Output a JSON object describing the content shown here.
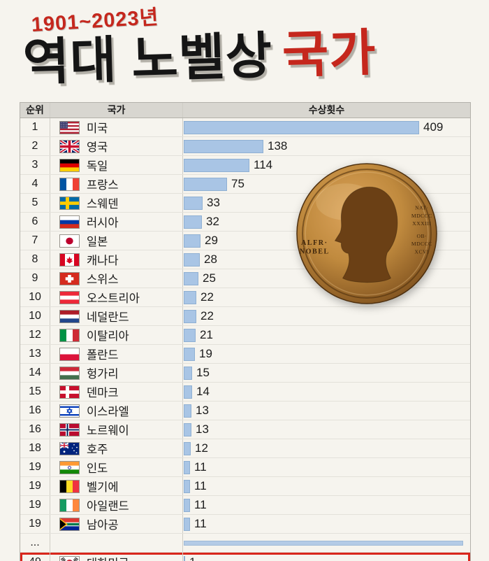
{
  "title": {
    "period": "1901~2023년",
    "main": "역대 노벨상",
    "accent": "국가"
  },
  "table": {
    "headers": {
      "rank": "순위",
      "country": "국가",
      "count": "수상횟수"
    },
    "ellipsis": "..."
  },
  "chart_data": {
    "type": "bar",
    "title": "역대 노벨상 국가",
    "period": "1901~2023년",
    "series_label": "수상횟수",
    "xlim": [
      0,
      409
    ],
    "max_value": 409,
    "rows": [
      {
        "rank": "1",
        "country": "미국",
        "flag": "us",
        "value": 409
      },
      {
        "rank": "2",
        "country": "영국",
        "flag": "gb",
        "value": 138
      },
      {
        "rank": "3",
        "country": "독일",
        "flag": "de",
        "value": 114
      },
      {
        "rank": "4",
        "country": "프랑스",
        "flag": "fr",
        "value": 75
      },
      {
        "rank": "5",
        "country": "스웨덴",
        "flag": "se",
        "value": 33
      },
      {
        "rank": "6",
        "country": "러시아",
        "flag": "ru",
        "value": 32
      },
      {
        "rank": "7",
        "country": "일본",
        "flag": "jp",
        "value": 29
      },
      {
        "rank": "8",
        "country": "캐나다",
        "flag": "ca",
        "value": 28
      },
      {
        "rank": "9",
        "country": "스위스",
        "flag": "ch",
        "value": 25
      },
      {
        "rank": "10",
        "country": "오스트리아",
        "flag": "at",
        "value": 22
      },
      {
        "rank": "10",
        "country": "네덜란드",
        "flag": "nl",
        "value": 22
      },
      {
        "rank": "12",
        "country": "이탈리아",
        "flag": "it",
        "value": 21
      },
      {
        "rank": "13",
        "country": "폴란드",
        "flag": "pl",
        "value": 19
      },
      {
        "rank": "14",
        "country": "헝가리",
        "flag": "hu",
        "value": 15
      },
      {
        "rank": "15",
        "country": "덴마크",
        "flag": "dk",
        "value": 14
      },
      {
        "rank": "16",
        "country": "이스라엘",
        "flag": "il",
        "value": 13
      },
      {
        "rank": "16",
        "country": "노르웨이",
        "flag": "no",
        "value": 13
      },
      {
        "rank": "18",
        "country": "호주",
        "flag": "au",
        "value": 12
      },
      {
        "rank": "19",
        "country": "인도",
        "flag": "in",
        "value": 11
      },
      {
        "rank": "19",
        "country": "벨기에",
        "flag": "be",
        "value": 11
      },
      {
        "rank": "19",
        "country": "아일랜드",
        "flag": "ie",
        "value": 11
      },
      {
        "rank": "19",
        "country": "남아공",
        "flag": "za",
        "value": 11
      }
    ],
    "highlight_row": {
      "rank": "49",
      "country": "대한민국",
      "flag": "kr",
      "value": 1
    }
  },
  "flags": {
    "us": {
      "type": "us"
    },
    "gb": {
      "type": "uk"
    },
    "de": {
      "type": "h",
      "colors": [
        "#000000",
        "#dd0000",
        "#ffce00"
      ]
    },
    "fr": {
      "type": "v",
      "colors": [
        "#0055a4",
        "#ffffff",
        "#ef4135"
      ]
    },
    "se": {
      "type": "cross",
      "bg": "#006aa7",
      "cross": "#fecc00"
    },
    "ru": {
      "type": "h",
      "colors": [
        "#ffffff",
        "#0039a6",
        "#d52b1e"
      ]
    },
    "jp": {
      "type": "circle",
      "bg": "#ffffff",
      "circle": "#bc002d"
    },
    "ca": {
      "type": "canada"
    },
    "ch": {
      "type": "swiss"
    },
    "at": {
      "type": "h",
      "colors": [
        "#ed2939",
        "#ffffff",
        "#ed2939"
      ]
    },
    "nl": {
      "type": "h",
      "colors": [
        "#ae1c28",
        "#ffffff",
        "#21468b"
      ]
    },
    "it": {
      "type": "v",
      "colors": [
        "#009246",
        "#ffffff",
        "#ce2b37"
      ]
    },
    "pl": {
      "type": "h",
      "colors": [
        "#ffffff",
        "#dc143c"
      ]
    },
    "hu": {
      "type": "h",
      "colors": [
        "#ce2939",
        "#ffffff",
        "#436f4d"
      ]
    },
    "dk": {
      "type": "cross",
      "bg": "#c8102e",
      "cross": "#ffffff"
    },
    "il": {
      "type": "israel"
    },
    "no": {
      "type": "cross",
      "bg": "#ba0c2f",
      "cross": "#ffffff",
      "inner": "#00205b"
    },
    "au": {
      "type": "australia"
    },
    "in": {
      "type": "h",
      "colors": [
        "#ff9933",
        "#ffffff",
        "#138808"
      ],
      "chakra": "#000080"
    },
    "be": {
      "type": "v",
      "colors": [
        "#000000",
        "#fdda24",
        "#ef3340"
      ]
    },
    "ie": {
      "type": "v",
      "colors": [
        "#169b62",
        "#ffffff",
        "#ff883e"
      ]
    },
    "za": {
      "type": "za"
    },
    "kr": {
      "type": "korea"
    }
  },
  "medal": {
    "name_lines": [
      "ALFR·",
      "NOBEL"
    ],
    "right_lines": [
      "NAT·",
      "MDCCC",
      "XXXIII",
      "OB·",
      "MDCCC",
      "XCVI"
    ]
  },
  "colors": {
    "page_bg": "#f6f4ee",
    "accent_red": "#c5271d",
    "bar_fill": "#a9c5e5",
    "bar_border": "#8fb0d3",
    "header_bg": "#d8d6d0",
    "highlight_border": "#d9261c",
    "grid_line": "#cfcdc6",
    "table_border": "#b3b1aa",
    "text": "#1b1b1b"
  }
}
